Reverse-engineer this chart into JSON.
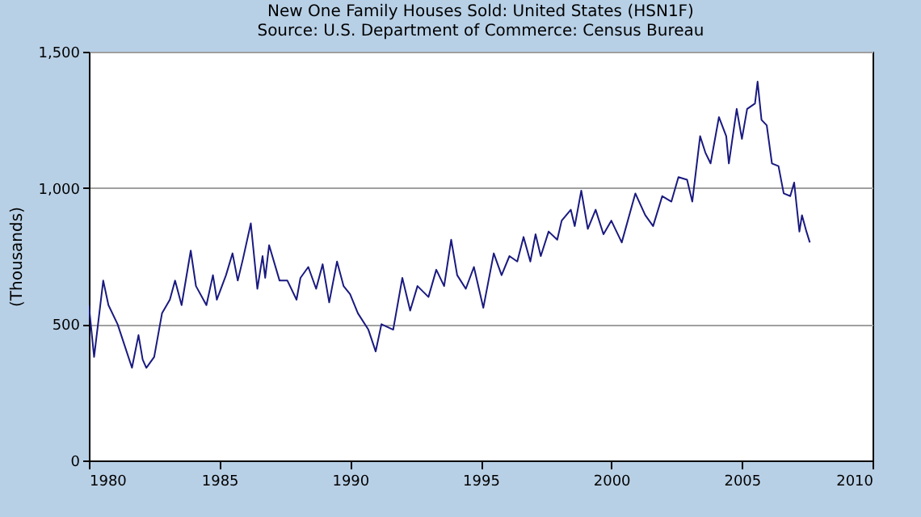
{
  "chart_data": {
    "type": "line",
    "title": "New One Family Houses Sold: United States (HSN1F)",
    "subtitle": "Source: U.S. Department of Commerce: Census Bureau",
    "ylabel": "(Thousands)",
    "xlim": [
      1980,
      2010
    ],
    "xticks": [
      1980,
      1985,
      1990,
      1995,
      2000,
      2005,
      2010
    ],
    "ylim": [
      0,
      1500
    ],
    "yticks": [
      0,
      500,
      {
        "value": 1000,
        "label": "1,000"
      },
      {
        "value": 1500,
        "label": "1,500"
      }
    ],
    "grid": "y",
    "series": [
      {
        "color": "#1a1a80",
        "x": [
          1980.0,
          1980.2,
          1980.35,
          1980.55,
          1980.75,
          1981.1,
          1981.65,
          1981.9,
          1982.06,
          1982.2,
          1982.5,
          1982.8,
          1983.1,
          1983.3,
          1983.55,
          1983.9,
          1984.1,
          1984.5,
          1984.75,
          1984.9,
          1985.25,
          1985.5,
          1985.7,
          1985.9,
          1986.2,
          1986.45,
          1986.65,
          1986.75,
          1986.9,
          1987.3,
          1987.6,
          1987.95,
          1988.1,
          1988.4,
          1988.7,
          1988.95,
          1989.2,
          1989.5,
          1989.75,
          1990.0,
          1990.3,
          1990.7,
          1990.98,
          1991.2,
          1991.65,
          1992.0,
          1992.3,
          1992.58,
          1993.0,
          1993.3,
          1993.6,
          1993.87,
          1994.1,
          1994.43,
          1994.74,
          1995.1,
          1995.5,
          1995.8,
          1996.1,
          1996.4,
          1996.64,
          1996.9,
          1997.1,
          1997.3,
          1997.6,
          1997.93,
          1998.1,
          1998.45,
          1998.6,
          1998.85,
          1999.1,
          1999.4,
          1999.7,
          2000.0,
          2000.4,
          2000.92,
          2001.3,
          2001.6,
          2001.95,
          2002.3,
          2002.57,
          2002.9,
          2003.1,
          2003.4,
          2003.6,
          2003.8,
          2004.12,
          2004.4,
          2004.5,
          2004.8,
          2005.0,
          2005.2,
          2005.5,
          2005.6,
          2005.75,
          2005.95,
          2006.15,
          2006.4,
          2006.6,
          2006.85,
          2007.0,
          2007.2,
          2007.3,
          2007.47,
          2007.6
        ],
        "values": [
          570,
          380,
          500,
          660,
          570,
          500,
          340,
          460,
          370,
          340,
          380,
          540,
          590,
          660,
          570,
          770,
          640,
          570,
          680,
          590,
          680,
          760,
          660,
          740,
          870,
          630,
          750,
          670,
          790,
          660,
          660,
          590,
          670,
          710,
          630,
          720,
          580,
          730,
          640,
          610,
          540,
          480,
          400,
          500,
          480,
          670,
          550,
          640,
          600,
          700,
          640,
          810,
          680,
          630,
          710,
          560,
          760,
          680,
          750,
          730,
          820,
          730,
          830,
          750,
          840,
          810,
          880,
          920,
          860,
          990,
          850,
          920,
          830,
          880,
          800,
          980,
          900,
          860,
          970,
          950,
          1040,
          1030,
          950,
          1190,
          1130,
          1090,
          1260,
          1190,
          1090,
          1290,
          1180,
          1290,
          1310,
          1390,
          1250,
          1230,
          1090,
          1080,
          980,
          970,
          1020,
          840,
          900,
          840,
          800
        ]
      }
    ]
  }
}
